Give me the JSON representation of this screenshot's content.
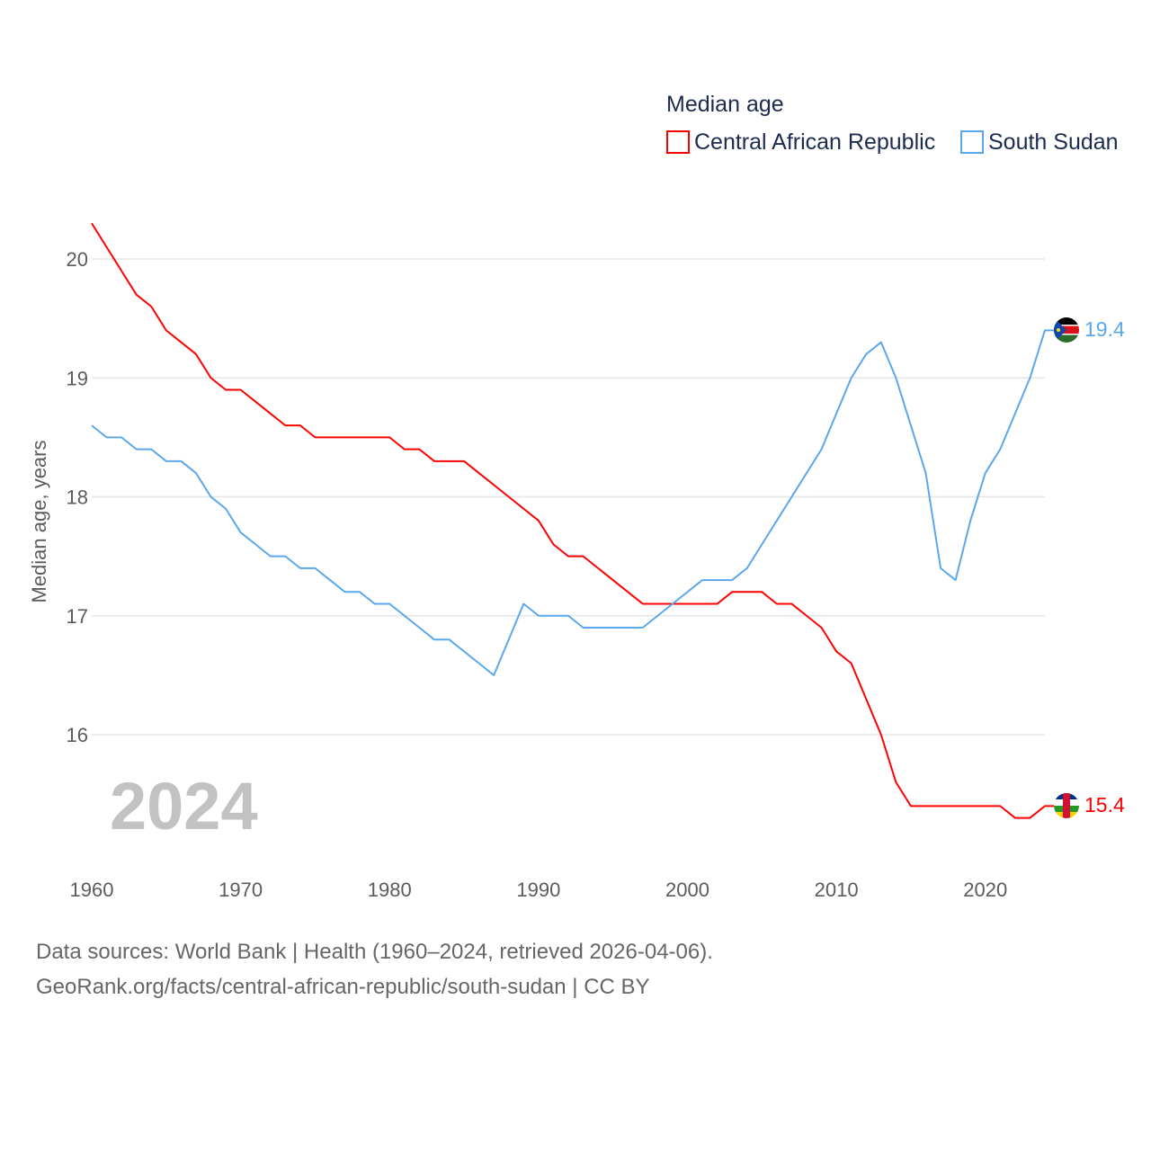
{
  "chart_data": {
    "type": "line",
    "title": "Median age",
    "ylabel": "Median age, years",
    "xlabel": "",
    "ylim": [
      15.0,
      20.3
    ],
    "xlim": [
      1960,
      2024
    ],
    "y_ticks": [
      "16",
      "17",
      "18",
      "19",
      "20"
    ],
    "x_ticks": [
      "1960",
      "1970",
      "1980",
      "1990",
      "2000",
      "2010",
      "2020"
    ],
    "grid": true,
    "legend_placement": "top-right",
    "year_label": "2024",
    "x": [
      1960,
      1961,
      1962,
      1963,
      1964,
      1965,
      1966,
      1967,
      1968,
      1969,
      1970,
      1971,
      1972,
      1973,
      1974,
      1975,
      1976,
      1977,
      1978,
      1979,
      1980,
      1981,
      1982,
      1983,
      1984,
      1985,
      1986,
      1987,
      1988,
      1989,
      1990,
      1991,
      1992,
      1993,
      1994,
      1995,
      1996,
      1997,
      1998,
      1999,
      2000,
      2001,
      2002,
      2003,
      2004,
      2005,
      2006,
      2007,
      2008,
      2009,
      2010,
      2011,
      2012,
      2013,
      2014,
      2015,
      2016,
      2017,
      2018,
      2019,
      2020,
      2021,
      2022,
      2023,
      2024
    ],
    "series": [
      {
        "name": "Central African Republic",
        "color": "#ff0000",
        "end_label": "15.4",
        "values": [
          20.3,
          20.1,
          19.9,
          19.7,
          19.6,
          19.4,
          19.3,
          19.2,
          19.0,
          18.9,
          18.9,
          18.8,
          18.7,
          18.6,
          18.6,
          18.5,
          18.5,
          18.5,
          18.5,
          18.5,
          18.5,
          18.4,
          18.4,
          18.3,
          18.3,
          18.3,
          18.2,
          18.1,
          18.0,
          17.9,
          17.8,
          17.6,
          17.5,
          17.5,
          17.4,
          17.3,
          17.2,
          17.1,
          17.1,
          17.1,
          17.1,
          17.1,
          17.1,
          17.2,
          17.2,
          17.2,
          17.1,
          17.1,
          17.0,
          16.9,
          16.7,
          16.6,
          16.3,
          16.0,
          15.6,
          15.4,
          15.4,
          15.4,
          15.4,
          15.4,
          15.4,
          15.4,
          15.3,
          15.3,
          15.4
        ]
      },
      {
        "name": "South Sudan",
        "color": "#5ba7ec",
        "end_label": "19.4",
        "values": [
          18.6,
          18.5,
          18.5,
          18.4,
          18.4,
          18.3,
          18.3,
          18.2,
          18.0,
          17.9,
          17.7,
          17.6,
          17.5,
          17.5,
          17.4,
          17.4,
          17.3,
          17.2,
          17.2,
          17.1,
          17.1,
          17.0,
          16.9,
          16.8,
          16.8,
          16.7,
          16.6,
          16.5,
          16.8,
          17.1,
          17.0,
          17.0,
          17.0,
          16.9,
          16.9,
          16.9,
          16.9,
          16.9,
          17.0,
          17.1,
          17.2,
          17.3,
          17.3,
          17.3,
          17.4,
          17.6,
          17.8,
          18.0,
          18.2,
          18.4,
          18.7,
          19.0,
          19.2,
          19.3,
          19.0,
          18.6,
          18.2,
          17.4,
          17.3,
          17.8,
          18.2,
          18.4,
          18.7,
          19.0,
          19.4
        ]
      }
    ]
  },
  "footer": {
    "line1": "Data sources: World Bank | Health (1960–2024, retrieved 2026-04-06).",
    "line2": "GeoRank.org/facts/central-african-republic/south-sudan | CC BY"
  }
}
